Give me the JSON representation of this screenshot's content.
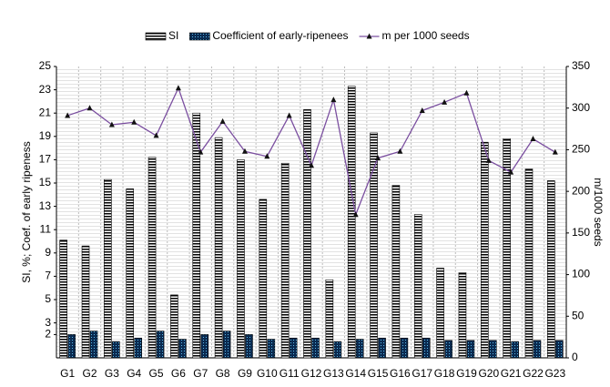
{
  "chart_data": {
    "type": "bar_line",
    "categories": [
      "G1",
      "G2",
      "G3",
      "G4",
      "G5",
      "G6",
      "G7",
      "G8",
      "G9",
      "G10",
      "G11",
      "G12",
      "G13",
      "G14",
      "G15",
      "G16",
      "G17",
      "G18",
      "G19",
      "G20",
      "G21",
      "G22",
      "G23"
    ],
    "series": [
      {
        "name": "SI",
        "color": "#000000",
        "values": [
          10.1,
          9.6,
          15.3,
          14.5,
          17.2,
          5.4,
          21,
          18.9,
          17,
          13.6,
          16.7,
          21.3,
          6.7,
          23.3,
          19.3,
          14.8,
          12.3,
          7.7,
          7.3,
          18.5,
          18.8,
          16.2,
          15.2
        ]
      },
      {
        "name": "Coefficient of early-ripenees",
        "color": "#1f5fa8",
        "values": [
          2.0,
          2.3,
          1.4,
          1.7,
          2.3,
          1.6,
          2.0,
          2.3,
          2.0,
          1.6,
          1.7,
          1.7,
          1.4,
          1.6,
          1.7,
          1.7,
          1.7,
          1.5,
          1.5,
          1.5,
          1.4,
          1.5,
          1.5
        ]
      },
      {
        "name": "m per 1000 seeds",
        "color": "#7b4fa0",
        "axis": "y2",
        "values": [
          291,
          300,
          280,
          283,
          267,
          324,
          247,
          284,
          248,
          242,
          291,
          231,
          310,
          172,
          240,
          248,
          297,
          307,
          318,
          237,
          223,
          263,
          247
        ]
      }
    ],
    "ylabel": "SI, %; Coef. of early ripeness",
    "y2label": "m/1000 seeds",
    "ylim": [
      0,
      25
    ],
    "yticks": [
      2,
      3,
      5,
      7,
      9,
      11,
      13,
      15,
      17,
      19,
      21,
      23,
      25
    ],
    "y2lim": [
      0,
      350
    ],
    "y2ticks": [
      0,
      50,
      100,
      150,
      200,
      250,
      300,
      350
    ],
    "grid": true,
    "legend": "top"
  }
}
